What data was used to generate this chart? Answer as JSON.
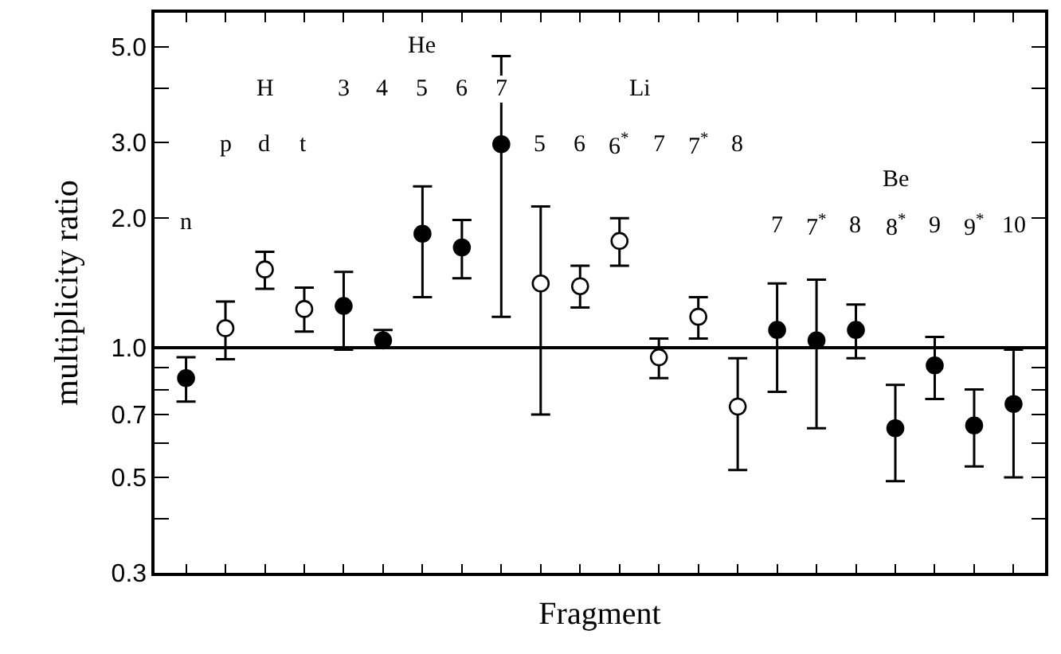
{
  "chart_data": {
    "type": "scatter",
    "xlabel": "Fragment",
    "ylabel": "multiplicity ratio",
    "categories": [
      "n",
      "p",
      "d",
      "t",
      "3",
      "4",
      "5",
      "6",
      "7",
      "5",
      "6",
      "6$^{*}$",
      "7",
      "7$^{*}$",
      "8",
      "7",
      "7$^{*}$",
      "8",
      "8$^{*}$",
      "9",
      "9$^{*}$",
      "10"
    ],
    "series": [
      {
        "color": "#000000",
        "values": [
          0.85,
          null,
          null,
          null,
          1.25,
          1.04,
          1.84,
          1.71,
          2.97,
          null,
          null,
          null,
          null,
          null,
          null,
          1.1,
          1.04,
          1.1,
          0.65,
          0.91,
          0.66,
          0.74
        ],
        "errors": [
          [
            0.75,
            0.95
          ],
          null,
          null,
          null,
          [
            0.99,
            1.5
          ],
          [
            1.0,
            1.1
          ],
          [
            1.31,
            2.37
          ],
          [
            1.45,
            1.98
          ],
          [
            1.18,
            4.76
          ],
          null,
          null,
          null,
          null,
          null,
          null,
          [
            0.79,
            1.41
          ],
          [
            0.65,
            1.44
          ],
          [
            0.945,
            1.26
          ],
          [
            0.49,
            0.82
          ],
          [
            0.76,
            1.06
          ],
          [
            0.53,
            0.8
          ],
          [
            0.5,
            0.99
          ]
        ]
      },
      {
        "color": "#ffffff",
        "values": [
          null,
          1.11,
          1.52,
          1.23,
          null,
          null,
          null,
          null,
          null,
          1.41,
          1.39,
          1.77,
          0.95,
          1.18,
          0.73,
          null,
          null,
          null,
          null,
          null,
          null,
          null
        ],
        "errors": [
          null,
          [
            0.94,
            1.28
          ],
          [
            1.37,
            1.67
          ],
          [
            1.09,
            1.38
          ],
          null,
          null,
          null,
          null,
          null,
          [
            0.7,
            2.13
          ],
          [
            1.24,
            1.55
          ],
          [
            1.55,
            2.0
          ],
          [
            0.85,
            1.05
          ],
          [
            1.05,
            1.31
          ],
          [
            0.52,
            0.945
          ],
          null,
          null,
          null,
          null,
          null,
          null,
          null
        ]
      }
    ],
    "annotations": [
      "H",
      "He",
      "Li",
      "Be"
    ],
    "marker": "circle",
    "ref_lines": [
      {
        "axis": "y",
        "value": 1.0,
        "color": "#000000"
      }
    ],
    "log": "y",
    "ylim": [
      0.3,
      6.0
    ],
    "yticks": [
      0.3,
      {
        "value": 0.4,
        "label": null
      },
      0.5,
      {
        "value": 0.6,
        "label": null
      },
      0.7,
      {
        "value": 0.8,
        "label": null
      },
      {
        "value": 0.9,
        "label": null
      },
      {
        "value": 1.0,
        "label": "1.0"
      },
      {
        "value": 2.0,
        "label": "2.0"
      },
      {
        "value": 3.0,
        "label": "3.0"
      },
      {
        "value": 4.0,
        "label": null
      },
      {
        "value": 5.0,
        "label": "5.0"
      }
    ]
  }
}
